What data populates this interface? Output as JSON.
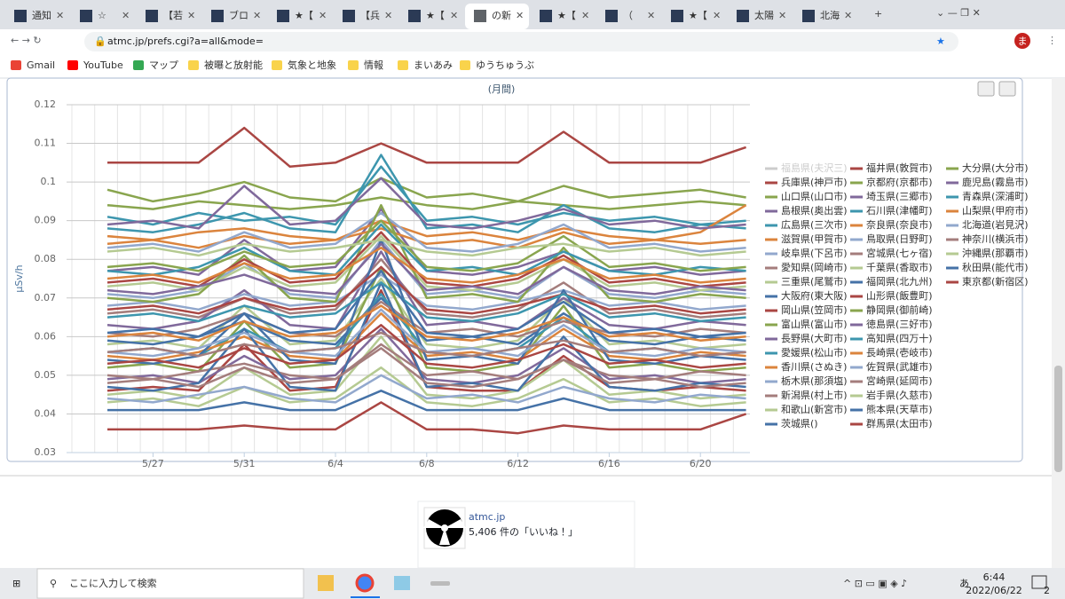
{
  "browser": {
    "tabs": [
      "通知",
      "☆",
      "【若",
      "ブロ",
      "★【",
      "【兵",
      "★【",
      "の新",
      "★【",
      "（",
      "★【",
      "太陽",
      "北海"
    ],
    "url": "atmc.jp/prefs.cgi?a=all&mode=",
    "profile": "ま",
    "bookmarks": [
      "Gmail",
      "YouTube",
      "マップ",
      "被曝と放射能",
      "気象と地象",
      "情報",
      "まいあみ",
      "ゆうちゅうぶ"
    ]
  },
  "chart_data": {
    "type": "line",
    "title": "(月間)",
    "y_label": "μSv/h",
    "categories": [
      null,
      "5/27",
      null,
      "5/31",
      null,
      "6/4",
      null,
      "6/8",
      null,
      "6/12",
      null,
      "6/16",
      null,
      "6/20",
      null
    ],
    "ylim": [
      0.03,
      0.12
    ],
    "yticks": [
      0.03,
      0.04,
      0.05,
      0.06,
      0.07,
      0.08,
      0.09,
      0.1,
      0.11,
      0.12
    ],
    "grid": true,
    "legend": "right",
    "series": [
      {
        "name": "福島県(夫沢三)",
        "color": "#4572a7",
        "visible": false
      },
      {
        "name": "兵庫県(神戸市)",
        "color": "#aa4643",
        "values": [
          0.046,
          0.047,
          0.046,
          0.058,
          0.046,
          0.047,
          0.072,
          0.047,
          0.046,
          0.046,
          0.055,
          0.047,
          0.046,
          0.047,
          0.046
        ]
      },
      {
        "name": "山口県(山口市)",
        "color": "#89a54e",
        "values": [
          0.098,
          0.095,
          0.097,
          0.1,
          0.096,
          0.095,
          0.101,
          0.096,
          0.097,
          0.095,
          0.099,
          0.096,
          0.097,
          0.098,
          0.096
        ]
      },
      {
        "name": "島根県(奥出雲)",
        "color": "#80699b",
        "values": [
          0.077,
          0.078,
          0.076,
          0.085,
          0.077,
          0.078,
          0.093,
          0.077,
          0.076,
          0.078,
          0.082,
          0.077,
          0.078,
          0.076,
          0.077
        ]
      },
      {
        "name": "広島県(三次市)",
        "color": "#3d96ae",
        "values": [
          0.091,
          0.089,
          0.092,
          0.09,
          0.091,
          0.089,
          0.104,
          0.09,
          0.091,
          0.089,
          0.092,
          0.09,
          0.091,
          0.089,
          0.09
        ]
      },
      {
        "name": "滋賀県(甲賀市)",
        "color": "#db843d",
        "values": [
          0.084,
          0.085,
          0.083,
          0.086,
          0.084,
          0.085,
          0.088,
          0.084,
          0.085,
          0.083,
          0.087,
          0.084,
          0.085,
          0.084,
          0.085
        ]
      },
      {
        "name": "岐阜県(下呂市)",
        "color": "#92a8cd",
        "values": [
          0.071,
          0.07,
          0.072,
          0.079,
          0.071,
          0.07,
          0.085,
          0.071,
          0.072,
          0.07,
          0.078,
          0.071,
          0.07,
          0.072,
          0.071
        ]
      },
      {
        "name": "愛知県(岡崎市)",
        "color": "#a47d7c",
        "values": [
          0.066,
          0.067,
          0.065,
          0.07,
          0.066,
          0.067,
          0.08,
          0.066,
          0.065,
          0.067,
          0.074,
          0.066,
          0.067,
          0.065,
          0.066
        ]
      },
      {
        "name": "三重県(尾鷲市)",
        "color": "#b5ca92",
        "values": [
          0.058,
          0.059,
          0.057,
          0.068,
          0.058,
          0.059,
          0.075,
          0.058,
          0.057,
          0.059,
          0.07,
          0.058,
          0.059,
          0.057,
          0.058
        ]
      },
      {
        "name": "大阪府(東大阪)",
        "color": "#4572a7",
        "values": [
          0.059,
          0.058,
          0.06,
          0.064,
          0.059,
          0.058,
          0.07,
          0.059,
          0.06,
          0.058,
          0.066,
          0.059,
          0.058,
          0.06,
          0.059
        ]
      },
      {
        "name": "岡山県(笠岡市)",
        "color": "#aa4643",
        "values": [
          0.036,
          0.036,
          0.036,
          0.037,
          0.036,
          0.036,
          0.043,
          0.036,
          0.036,
          0.035,
          0.037,
          0.036,
          0.036,
          0.036,
          0.04
        ]
      },
      {
        "name": "富山県(富山市)",
        "color": "#89a54e",
        "values": [
          0.052,
          0.053,
          0.051,
          0.064,
          0.052,
          0.053,
          0.078,
          0.052,
          0.051,
          0.053,
          0.068,
          0.052,
          0.053,
          0.051,
          0.052
        ]
      },
      {
        "name": "長野県(大町市)",
        "color": "#80699b",
        "values": [
          0.063,
          0.062,
          0.064,
          0.072,
          0.063,
          0.062,
          0.082,
          0.063,
          0.064,
          0.062,
          0.07,
          0.063,
          0.062,
          0.064,
          0.063
        ]
      },
      {
        "name": "愛媛県(松山市)",
        "color": "#3d96ae",
        "values": [
          0.056,
          0.057,
          0.055,
          0.062,
          0.056,
          0.057,
          0.071,
          0.056,
          0.055,
          0.057,
          0.065,
          0.056,
          0.057,
          0.055,
          0.056
        ]
      },
      {
        "name": "香川県(さぬき)",
        "color": "#db843d",
        "values": [
          0.055,
          0.054,
          0.056,
          0.06,
          0.055,
          0.054,
          0.066,
          0.055,
          0.056,
          0.054,
          0.062,
          0.055,
          0.054,
          0.056,
          0.055
        ]
      },
      {
        "name": "栃木県(那須塩)",
        "color": "#92a8cd",
        "values": [
          0.068,
          0.069,
          0.067,
          0.071,
          0.068,
          0.069,
          0.076,
          0.068,
          0.067,
          0.069,
          0.072,
          0.068,
          0.069,
          0.067,
          0.068
        ]
      },
      {
        "name": "新潟県(村上市)",
        "color": "#a47d7c",
        "values": [
          0.061,
          0.06,
          0.062,
          0.066,
          0.061,
          0.06,
          0.069,
          0.061,
          0.062,
          0.06,
          0.064,
          0.061,
          0.06,
          0.062,
          0.061
        ]
      },
      {
        "name": "和歌山(新宮市)",
        "color": "#b5ca92",
        "values": [
          0.045,
          0.046,
          0.044,
          0.052,
          0.045,
          0.046,
          0.06,
          0.045,
          0.044,
          0.046,
          0.054,
          0.045,
          0.046,
          0.044,
          0.045
        ]
      },
      {
        "name": "茨城県()",
        "color": "#4572a7",
        "values": [
          0.054,
          0.053,
          0.055,
          0.066,
          0.054,
          0.053,
          0.085,
          0.054,
          0.055,
          0.053,
          0.072,
          0.054,
          0.053,
          0.055,
          0.054
        ]
      },
      {
        "name": "福井県(敦賀市)",
        "color": "#aa4643",
        "values": [
          0.105,
          0.105,
          0.105,
          0.114,
          0.104,
          0.105,
          0.11,
          0.105,
          0.105,
          0.105,
          0.113,
          0.105,
          0.105,
          0.105,
          0.109
        ]
      },
      {
        "name": "京都府(京都市)",
        "color": "#89a54e",
        "values": [
          0.094,
          0.093,
          0.095,
          0.094,
          0.093,
          0.094,
          0.096,
          0.094,
          0.093,
          0.095,
          0.094,
          0.093,
          0.094,
          0.095,
          0.094
        ]
      },
      {
        "name": "埼玉県(三郷市)",
        "color": "#80699b",
        "values": [
          0.049,
          0.05,
          0.048,
          0.055,
          0.049,
          0.05,
          0.062,
          0.049,
          0.048,
          0.05,
          0.057,
          0.049,
          0.05,
          0.048,
          0.049
        ]
      },
      {
        "name": "石川県(津幡町)",
        "color": "#3d96ae",
        "values": [
          0.088,
          0.087,
          0.089,
          0.092,
          0.088,
          0.087,
          0.107,
          0.088,
          0.089,
          0.087,
          0.094,
          0.088,
          0.087,
          0.089,
          0.088
        ]
      },
      {
        "name": "奈良県(奈良市)",
        "color": "#db843d",
        "values": [
          0.086,
          0.085,
          0.087,
          0.088,
          0.086,
          0.085,
          0.09,
          0.086,
          0.087,
          0.085,
          0.088,
          0.086,
          0.085,
          0.087,
          0.094
        ]
      },
      {
        "name": "鳥取県(日野町)",
        "color": "#92a8cd",
        "values": [
          0.083,
          0.084,
          0.082,
          0.087,
          0.083,
          0.084,
          0.092,
          0.083,
          0.082,
          0.084,
          0.089,
          0.083,
          0.084,
          0.082,
          0.083
        ]
      },
      {
        "name": "宮城県(七ヶ宿)",
        "color": "#a47d7c",
        "values": [
          0.05,
          0.049,
          0.051,
          0.053,
          0.05,
          0.049,
          0.058,
          0.05,
          0.051,
          0.049,
          0.054,
          0.05,
          0.049,
          0.051,
          0.05
        ]
      },
      {
        "name": "千葉県(香取市)",
        "color": "#b5ca92",
        "values": [
          0.073,
          0.074,
          0.072,
          0.078,
          0.073,
          0.074,
          0.086,
          0.073,
          0.072,
          0.074,
          0.08,
          0.073,
          0.074,
          0.072,
          0.073
        ]
      },
      {
        "name": "福岡県(北九州)",
        "color": "#4572a7",
        "values": [
          0.047,
          0.046,
          0.048,
          0.062,
          0.047,
          0.046,
          0.074,
          0.047,
          0.048,
          0.046,
          0.06,
          0.047,
          0.046,
          0.048,
          0.047
        ]
      },
      {
        "name": "山形県(飯豊町)",
        "color": "#aa4643",
        "values": [
          0.067,
          0.068,
          0.066,
          0.07,
          0.067,
          0.068,
          0.078,
          0.067,
          0.066,
          0.068,
          0.071,
          0.067,
          0.068,
          0.066,
          0.067
        ]
      },
      {
        "name": "静岡県(御前崎)",
        "color": "#89a54e",
        "values": [
          0.07,
          0.069,
          0.071,
          0.081,
          0.07,
          0.069,
          0.094,
          0.07,
          0.071,
          0.069,
          0.083,
          0.07,
          0.069,
          0.071,
          0.07
        ]
      },
      {
        "name": "徳島県(三好市)",
        "color": "#80699b",
        "values": [
          0.089,
          0.09,
          0.088,
          0.099,
          0.089,
          0.09,
          0.101,
          0.089,
          0.088,
          0.09,
          0.093,
          0.089,
          0.09,
          0.088,
          0.089
        ]
      },
      {
        "name": "高知県(四万十)",
        "color": "#3d96ae",
        "values": [
          0.077,
          0.076,
          0.078,
          0.083,
          0.077,
          0.076,
          0.089,
          0.077,
          0.078,
          0.076,
          0.082,
          0.077,
          0.076,
          0.078,
          0.077
        ]
      },
      {
        "name": "長崎県(壱岐市)",
        "color": "#db843d",
        "values": [
          0.06,
          0.061,
          0.059,
          0.064,
          0.06,
          0.061,
          0.068,
          0.06,
          0.059,
          0.061,
          0.065,
          0.06,
          0.061,
          0.059,
          0.06
        ]
      },
      {
        "name": "佐賀県(武雄市)",
        "color": "#92a8cd",
        "values": [
          0.056,
          0.055,
          0.057,
          0.061,
          0.056,
          0.055,
          0.067,
          0.056,
          0.057,
          0.055,
          0.063,
          0.056,
          0.055,
          0.057,
          0.056
        ]
      },
      {
        "name": "宮崎県(延岡市)",
        "color": "#a47d7c",
        "values": [
          0.048,
          0.049,
          0.047,
          0.052,
          0.048,
          0.049,
          0.057,
          0.048,
          0.047,
          0.049,
          0.054,
          0.048,
          0.049,
          0.047,
          0.048
        ]
      },
      {
        "name": "岩手県(久慈市)",
        "color": "#b5ca92",
        "values": [
          0.043,
          0.044,
          0.042,
          0.047,
          0.043,
          0.044,
          0.052,
          0.043,
          0.042,
          0.044,
          0.049,
          0.043,
          0.044,
          0.042,
          0.043
        ]
      },
      {
        "name": "熊本県(天草市)",
        "color": "#4572a7",
        "values": [
          0.041,
          0.041,
          0.041,
          0.043,
          0.041,
          0.041,
          0.046,
          0.041,
          0.041,
          0.041,
          0.044,
          0.041,
          0.041,
          0.041,
          0.041
        ]
      },
      {
        "name": "群馬県(太田市)",
        "color": "#aa4643",
        "values": [
          0.074,
          0.075,
          0.073,
          0.08,
          0.074,
          0.075,
          0.087,
          0.074,
          0.073,
          0.075,
          0.081,
          0.074,
          0.075,
          0.073,
          0.074
        ]
      },
      {
        "name": "大分県(大分市)",
        "color": "#89a54e",
        "values": [
          0.078,
          0.079,
          0.077,
          0.082,
          0.078,
          0.079,
          0.09,
          0.078,
          0.077,
          0.079,
          0.086,
          0.078,
          0.079,
          0.077,
          0.078
        ]
      },
      {
        "name": "鹿児島(霧島市)",
        "color": "#80699b",
        "values": [
          0.072,
          0.071,
          0.073,
          0.076,
          0.072,
          0.071,
          0.084,
          0.072,
          0.073,
          0.071,
          0.078,
          0.072,
          0.071,
          0.073,
          0.072
        ]
      },
      {
        "name": "青森県(深浦町)",
        "color": "#3d96ae",
        "values": [
          0.065,
          0.066,
          0.064,
          0.068,
          0.065,
          0.066,
          0.074,
          0.065,
          0.064,
          0.066,
          0.071,
          0.065,
          0.066,
          0.064,
          0.065
        ]
      },
      {
        "name": "山梨県(甲府市)",
        "color": "#db843d",
        "values": [
          0.075,
          0.076,
          0.074,
          0.079,
          0.075,
          0.076,
          0.083,
          0.075,
          0.074,
          0.076,
          0.08,
          0.075,
          0.076,
          0.074,
          0.075
        ]
      },
      {
        "name": "北海道(岩見沢)",
        "color": "#92a8cd",
        "values": [
          0.044,
          0.043,
          0.045,
          0.047,
          0.044,
          0.043,
          0.05,
          0.044,
          0.045,
          0.043,
          0.047,
          0.044,
          0.043,
          0.045,
          0.044
        ]
      },
      {
        "name": "神奈川(横浜市)",
        "color": "#a47d7c",
        "values": [
          0.056,
          0.057,
          0.055,
          0.058,
          0.056,
          0.057,
          0.061,
          0.056,
          0.055,
          0.057,
          0.059,
          0.056,
          0.057,
          0.055,
          0.056
        ]
      },
      {
        "name": "沖縄県(那覇市)",
        "color": "#b5ca92",
        "values": [
          0.082,
          0.083,
          0.081,
          0.084,
          0.082,
          0.083,
          0.085,
          0.082,
          0.081,
          0.083,
          0.084,
          0.082,
          0.083,
          0.081,
          0.082
        ]
      },
      {
        "name": "秋田県(能代市)",
        "color": "#4572a7",
        "values": [
          0.061,
          0.062,
          0.06,
          0.066,
          0.061,
          0.062,
          0.077,
          0.061,
          0.06,
          0.062,
          0.069,
          0.061,
          0.062,
          0.06,
          0.061
        ]
      },
      {
        "name": "東京都(新宿区)",
        "color": "#aa4643",
        "values": [
          0.053,
          0.054,
          0.052,
          0.057,
          0.053,
          0.054,
          0.063,
          0.053,
          0.052,
          0.054,
          0.058,
          0.053,
          0.054,
          0.052,
          0.053
        ]
      }
    ]
  },
  "facebook_widget": {
    "name": "atmc.jp",
    "likes": "5,406 件の「いいね！」"
  },
  "taskbar": {
    "search": "ここに入力して検索",
    "ime": "あ",
    "time": "6:44",
    "date": "2022/06/22",
    "notifications": 2
  }
}
